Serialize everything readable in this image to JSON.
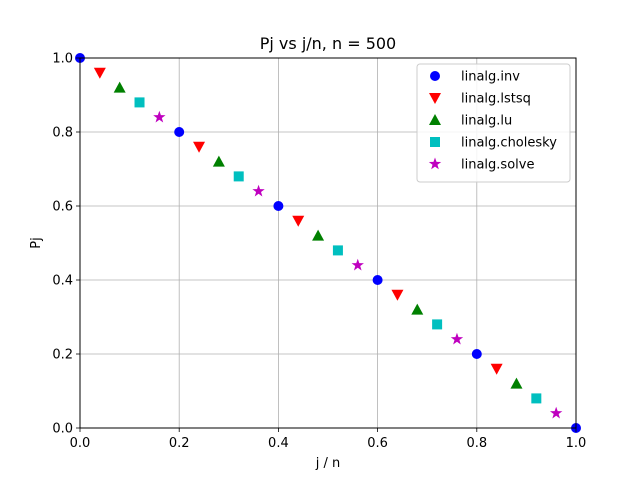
{
  "chart_data": {
    "type": "scatter",
    "title": "Pj vs j/n, n = 500",
    "xlabel": "j / n",
    "ylabel": "Pj",
    "xlim": [
      0,
      1
    ],
    "ylim": [
      0,
      1
    ],
    "xticks": [
      "0.0",
      "0.2",
      "0.4",
      "0.6",
      "0.8",
      "1.0"
    ],
    "yticks": [
      "0.0",
      "0.2",
      "0.4",
      "0.6",
      "0.8",
      "1.0"
    ],
    "grid": true,
    "legend_position": "top-right",
    "series": [
      {
        "name": "linalg.inv",
        "marker": "circle",
        "color": "#0000ff",
        "points": [
          [
            0.0,
            1.0
          ],
          [
            0.2,
            0.8
          ],
          [
            0.4,
            0.6
          ],
          [
            0.6,
            0.4
          ],
          [
            0.8,
            0.2
          ],
          [
            1.0,
            0.0
          ]
        ]
      },
      {
        "name": "linalg.lstsq",
        "marker": "triangle-down",
        "color": "#ff0000",
        "points": [
          [
            0.04,
            0.96
          ],
          [
            0.24,
            0.76
          ],
          [
            0.44,
            0.56
          ],
          [
            0.64,
            0.36
          ],
          [
            0.84,
            0.16
          ]
        ]
      },
      {
        "name": "linalg.lu",
        "marker": "triangle-up",
        "color": "#008000",
        "points": [
          [
            0.08,
            0.92
          ],
          [
            0.28,
            0.72
          ],
          [
            0.48,
            0.52
          ],
          [
            0.68,
            0.32
          ],
          [
            0.88,
            0.12
          ]
        ]
      },
      {
        "name": "linalg.cholesky",
        "marker": "square",
        "color": "#00bfbf",
        "points": [
          [
            0.12,
            0.88
          ],
          [
            0.32,
            0.68
          ],
          [
            0.52,
            0.48
          ],
          [
            0.72,
            0.28
          ],
          [
            0.92,
            0.08
          ]
        ]
      },
      {
        "name": "linalg.solve",
        "marker": "star",
        "color": "#bf00bf",
        "points": [
          [
            0.16,
            0.84
          ],
          [
            0.36,
            0.64
          ],
          [
            0.56,
            0.44
          ],
          [
            0.76,
            0.24
          ],
          [
            0.96,
            0.04
          ]
        ]
      }
    ]
  }
}
